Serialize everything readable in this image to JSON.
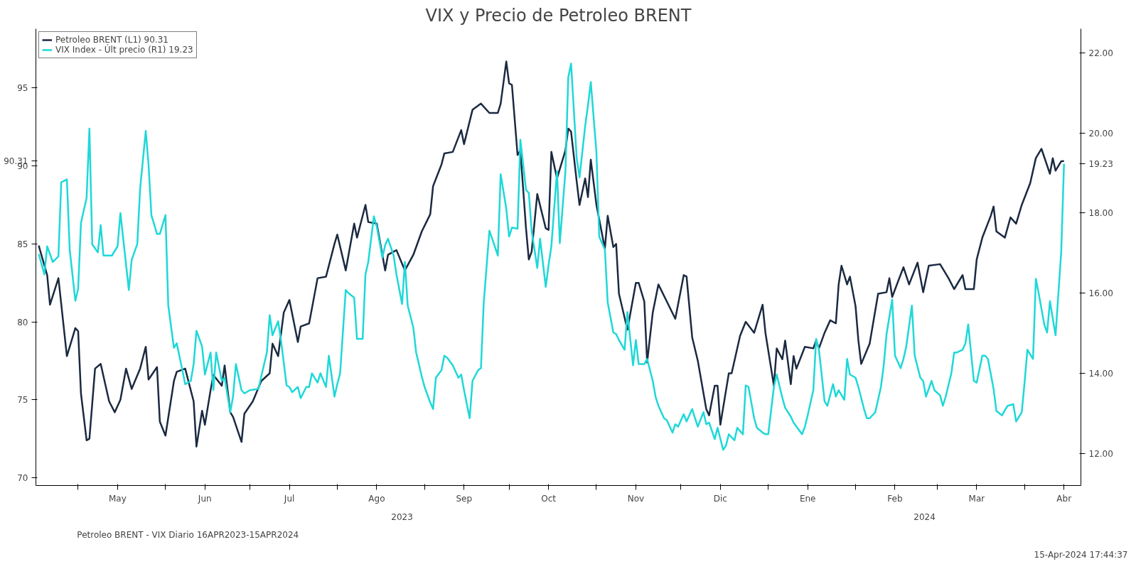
{
  "chart_data": {
    "type": "line",
    "title": "VIX y Precio de Petroleo BRENT",
    "xlim": [
      "2023-04-16",
      "2024-04-21"
    ],
    "xticks": [
      {
        "value": "2023-05-01",
        "label": null
      },
      {
        "value": "2023-05-15",
        "label": "May"
      },
      {
        "value": "2023-06-01",
        "label": null
      },
      {
        "value": "2023-06-15",
        "label": "Jun"
      },
      {
        "value": "2023-07-01",
        "label": null
      },
      {
        "value": "2023-07-15",
        "label": "Jul"
      },
      {
        "value": "2023-08-01",
        "label": null
      },
      {
        "value": "2023-08-15",
        "label": "Ago"
      },
      {
        "value": "2023-09-01",
        "label": null
      },
      {
        "value": "2023-09-15",
        "label": "Sep"
      },
      {
        "value": "2023-10-01",
        "label": null
      },
      {
        "value": "2023-10-15",
        "label": "Oct"
      },
      {
        "value": "2023-11-01",
        "label": null
      },
      {
        "value": "2023-11-15",
        "label": "Nov"
      },
      {
        "value": "2023-12-01",
        "label": null
      },
      {
        "value": "2023-12-15",
        "label": "Dic"
      },
      {
        "value": "2024-01-01",
        "label": null
      },
      {
        "value": "2024-01-15",
        "label": "Ene"
      },
      {
        "value": "2024-02-01",
        "label": null
      },
      {
        "value": "2024-02-15",
        "label": "Feb"
      },
      {
        "value": "2024-03-01",
        "label": null
      },
      {
        "value": "2024-03-15",
        "label": "Mar"
      },
      {
        "value": "2024-04-01",
        "label": null
      },
      {
        "value": "2024-04-15",
        "label": "Abr"
      }
    ],
    "ylim": [
      69.5,
      98.8
    ],
    "yticks": [
      70,
      75,
      80,
      85,
      90,
      {
        "value": 90.31,
        "label": "90.31"
      },
      95
    ],
    "y2lim": [
      11.2,
      22.6
    ],
    "y2ticks": [
      {
        "value": 12,
        "label": "12.00"
      },
      {
        "value": 14,
        "label": "14.00"
      },
      {
        "value": 16,
        "label": "16.00"
      },
      {
        "value": 18,
        "label": "18.00"
      },
      {
        "value": 19.23,
        "label": "19.23"
      },
      {
        "value": 20,
        "label": "20.00"
      },
      {
        "value": 22,
        "label": "22.00"
      }
    ],
    "legend": "top left",
    "series": [
      {
        "name": "Petroleo BRENT (L1) 90.31",
        "color": "#1b2a41",
        "axis": "y",
        "x": [
          "2023-04-17",
          "2023-04-20",
          "2023-04-21",
          "2023-04-24",
          "2023-04-27",
          "2023-04-30",
          "2023-05-01",
          "2023-05-02",
          "2023-05-04",
          "2023-05-05",
          "2023-05-07",
          "2023-05-09",
          "2023-05-12",
          "2023-05-14",
          "2023-05-16",
          "2023-05-18",
          "2023-05-20",
          "2023-05-23",
          "2023-05-25",
          "2023-05-26",
          "2023-05-29",
          "2023-05-30",
          "2023-06-01",
          "2023-06-04",
          "2023-06-05",
          "2023-06-08",
          "2023-06-11",
          "2023-06-12",
          "2023-06-14",
          "2023-06-15",
          "2023-06-17",
          "2023-06-18",
          "2023-06-21",
          "2023-06-22",
          "2023-06-24",
          "2023-06-25",
          "2023-06-28",
          "2023-06-29",
          "2023-07-02",
          "2023-07-05",
          "2023-07-08",
          "2023-07-09",
          "2023-07-11",
          "2023-07-13",
          "2023-07-15",
          "2023-07-18",
          "2023-07-19",
          "2023-07-22",
          "2023-07-25",
          "2023-07-28",
          "2023-07-31",
          "2023-08-01",
          "2023-08-04",
          "2023-08-07",
          "2023-08-08",
          "2023-08-11",
          "2023-08-12",
          "2023-08-15",
          "2023-08-18",
          "2023-08-19",
          "2023-08-22",
          "2023-08-25",
          "2023-08-28",
          "2023-08-31",
          "2023-09-03",
          "2023-09-04",
          "2023-09-07",
          "2023-09-08",
          "2023-09-11",
          "2023-09-14",
          "2023-09-15",
          "2023-09-18",
          "2023-09-21",
          "2023-09-24",
          "2023-09-27",
          "2023-09-28",
          "2023-09-30",
          "2023-10-01",
          "2023-10-02",
          "2023-10-04",
          "2023-10-05",
          "2023-10-07",
          "2023-10-08",
          "2023-10-09",
          "2023-10-11",
          "2023-10-14",
          "2023-10-15",
          "2023-10-16",
          "2023-10-18",
          "2023-10-21",
          "2023-10-22",
          "2023-10-23",
          "2023-10-25",
          "2023-10-26",
          "2023-10-28",
          "2023-10-29",
          "2023-10-30",
          "2023-11-01",
          "2023-11-04",
          "2023-11-05",
          "2023-11-07",
          "2023-11-08",
          "2023-11-09",
          "2023-11-12",
          "2023-11-15",
          "2023-11-16",
          "2023-11-18",
          "2023-11-19",
          "2023-11-21",
          "2023-11-23",
          "2023-11-26",
          "2023-11-29",
          "2023-12-02",
          "2023-12-03",
          "2023-12-05",
          "2023-12-07",
          "2023-12-10",
          "2023-12-11",
          "2023-12-13",
          "2023-12-14",
          "2023-12-15",
          "2023-12-18",
          "2023-12-19",
          "2023-12-22",
          "2023-12-24",
          "2023-12-27",
          "2023-12-30",
          "2023-12-31",
          "2024-01-03",
          "2024-01-04",
          "2024-01-06",
          "2024-01-07",
          "2024-01-09",
          "2024-01-10",
          "2024-01-11",
          "2024-01-14",
          "2024-01-17",
          "2024-01-18",
          "2024-01-19",
          "2024-01-21",
          "2024-01-23",
          "2024-01-25",
          "2024-01-26",
          "2024-01-27",
          "2024-01-29",
          "2024-01-30",
          "2024-02-01",
          "2024-02-02",
          "2024-02-03",
          "2024-02-06",
          "2024-02-09",
          "2024-02-12",
          "2024-02-13",
          "2024-02-14",
          "2024-02-18",
          "2024-02-20",
          "2024-02-23",
          "2024-02-25",
          "2024-02-27",
          "2024-03-02",
          "2024-03-05",
          "2024-03-07",
          "2024-03-10",
          "2024-03-11",
          "2024-03-14",
          "2024-03-15",
          "2024-03-17",
          "2024-03-20",
          "2024-03-21",
          "2024-03-22",
          "2024-03-25",
          "2024-03-27",
          "2024-03-29",
          "2024-03-31",
          "2024-04-03",
          "2024-04-05",
          "2024-04-07",
          "2024-04-10",
          "2024-04-11",
          "2024-04-12",
          "2024-04-14",
          "2024-04-15"
        ],
        "values": [
          84.9,
          83.0,
          81.1,
          82.8,
          77.8,
          79.6,
          79.4,
          75.4,
          72.4,
          72.5,
          77.0,
          77.3,
          74.9,
          74.2,
          75.0,
          77.0,
          75.7,
          77.0,
          78.4,
          76.3,
          77.1,
          73.6,
          72.7,
          76.2,
          76.8,
          77.0,
          74.9,
          72.0,
          74.3,
          73.4,
          75.6,
          76.6,
          75.9,
          77.2,
          74.2,
          73.9,
          72.3,
          74.1,
          74.9,
          76.2,
          76.7,
          78.6,
          77.8,
          80.6,
          81.4,
          78.7,
          79.7,
          79.9,
          82.8,
          82.9,
          85.0,
          85.6,
          83.3,
          86.3,
          85.4,
          87.5,
          86.4,
          86.3,
          83.3,
          84.3,
          84.6,
          83.3,
          84.3,
          85.8,
          86.9,
          88.7,
          90.1,
          90.8,
          90.9,
          92.3,
          91.4,
          93.6,
          94.0,
          93.4,
          93.4,
          94.0,
          96.7,
          95.3,
          95.2,
          90.7,
          91.0,
          86.0,
          84.0,
          84.5,
          88.2,
          86.0,
          85.9,
          90.9,
          89.2,
          91.0,
          92.4,
          92.2,
          89.0,
          87.5,
          89.2,
          88.0,
          90.4,
          87.5,
          84.7,
          86.8,
          84.8,
          85.0,
          81.8,
          79.5,
          82.5,
          82.5,
          81.3,
          77.4,
          80.6,
          82.4,
          81.3,
          80.2,
          83.0,
          82.9,
          79.0,
          77.5,
          74.4,
          74.0,
          75.9,
          75.9,
          73.4,
          76.7,
          76.7,
          79.1,
          80.0,
          79.3,
          81.1,
          79.3,
          75.9,
          78.3,
          77.6,
          78.8,
          76.0,
          77.8,
          77.0,
          78.4,
          78.3,
          78.8,
          78.3,
          79.3,
          80.1,
          79.9,
          82.4,
          83.6,
          82.4,
          82.9,
          81.0,
          78.8,
          77.3,
          78.6,
          81.8,
          81.9,
          82.8,
          81.6,
          83.5,
          82.4,
          83.8,
          81.9,
          83.6,
          83.7,
          82.8,
          82.1,
          83.0,
          82.1,
          82.1,
          84.0,
          85.4,
          86.8,
          87.4,
          85.8,
          85.4,
          86.7,
          86.3,
          87.5,
          88.9,
          90.5,
          91.1,
          89.5,
          90.5,
          89.7,
          90.3,
          90.31
        ]
      },
      {
        "name": "VIX Index - Últ precio (R1) 19.23",
        "color": "#1ed8d8",
        "axis": "y2",
        "x": [
          "2023-04-17",
          "2023-04-19",
          "2023-04-20",
          "2023-04-22",
          "2023-04-24",
          "2023-04-25",
          "2023-04-27",
          "2023-04-28",
          "2023-04-30",
          "2023-05-01",
          "2023-05-02",
          "2023-05-04",
          "2023-05-05",
          "2023-05-06",
          "2023-05-08",
          "2023-05-09",
          "2023-05-10",
          "2023-05-13",
          "2023-05-15",
          "2023-05-16",
          "2023-05-19",
          "2023-05-20",
          "2023-05-22",
          "2023-05-23",
          "2023-05-25",
          "2023-05-26",
          "2023-05-27",
          "2023-05-29",
          "2023-05-30",
          "2023-06-01",
          "2023-06-02",
          "2023-06-04",
          "2023-06-05",
          "2023-06-07",
          "2023-06-08",
          "2023-06-10",
          "2023-06-11",
          "2023-06-12",
          "2023-06-14",
          "2023-06-15",
          "2023-06-17",
          "2023-06-18",
          "2023-06-19",
          "2023-06-21",
          "2023-06-22",
          "2023-06-24",
          "2023-06-25",
          "2023-06-26",
          "2023-06-28",
          "2023-06-29",
          "2023-07-01",
          "2023-07-04",
          "2023-07-05",
          "2023-07-07",
          "2023-07-08",
          "2023-07-09",
          "2023-07-11",
          "2023-07-12",
          "2023-07-14",
          "2023-07-15",
          "2023-07-16",
          "2023-07-18",
          "2023-07-19",
          "2023-07-21",
          "2023-07-22",
          "2023-07-23",
          "2023-07-25",
          "2023-07-26",
          "2023-07-28",
          "2023-07-29",
          "2023-07-31",
          "2023-08-01",
          "2023-08-02",
          "2023-08-04",
          "2023-08-05",
          "2023-08-07",
          "2023-08-08",
          "2023-08-10",
          "2023-08-11",
          "2023-08-12",
          "2023-08-14",
          "2023-08-15",
          "2023-08-17",
          "2023-08-18",
          "2023-08-19",
          "2023-08-21",
          "2023-08-22",
          "2023-08-24",
          "2023-08-25",
          "2023-08-26",
          "2023-08-28",
          "2023-08-29",
          "2023-08-31",
          "2023-09-01",
          "2023-09-03",
          "2023-09-04",
          "2023-09-05",
          "2023-09-07",
          "2023-09-08",
          "2023-09-09",
          "2023-09-11",
          "2023-09-13",
          "2023-09-14",
          "2023-09-15",
          "2023-09-17",
          "2023-09-18",
          "2023-09-20",
          "2023-09-21",
          "2023-09-22",
          "2023-09-24",
          "2023-09-25",
          "2023-09-27",
          "2023-09-28",
          "2023-09-30",
          "2023-10-01",
          "2023-10-02",
          "2023-10-04",
          "2023-10-05",
          "2023-10-07",
          "2023-10-08",
          "2023-10-09",
          "2023-10-11",
          "2023-10-12",
          "2023-10-14",
          "2023-10-15",
          "2023-10-16",
          "2023-10-18",
          "2023-10-19",
          "2023-10-21",
          "2023-10-22",
          "2023-10-23",
          "2023-10-25",
          "2023-10-26",
          "2023-10-28",
          "2023-10-29",
          "2023-10-30",
          "2023-11-01",
          "2023-11-02",
          "2023-11-04",
          "2023-11-05",
          "2023-11-07",
          "2023-11-08",
          "2023-11-09",
          "2023-11-11",
          "2023-11-12",
          "2023-11-14",
          "2023-11-15",
          "2023-11-16",
          "2023-11-18",
          "2023-11-19",
          "2023-11-21",
          "2023-11-22",
          "2023-11-23",
          "2023-11-25",
          "2023-11-26",
          "2023-11-28",
          "2023-11-29",
          "2023-11-30",
          "2023-12-02",
          "2023-12-03",
          "2023-12-05",
          "2023-12-06",
          "2023-12-07",
          "2023-12-09",
          "2023-12-10",
          "2023-12-11",
          "2023-12-13",
          "2023-12-14",
          "2023-12-16",
          "2023-12-17",
          "2023-12-18",
          "2023-12-20",
          "2023-12-21",
          "2023-12-23",
          "2023-12-24",
          "2023-12-25",
          "2023-12-27",
          "2023-12-28",
          "2023-12-30",
          "2023-12-31",
          "2024-01-01",
          "2024-01-03",
          "2024-01-04",
          "2024-01-06",
          "2024-01-07",
          "2024-01-09",
          "2024-01-10",
          "2024-01-11",
          "2024-01-13",
          "2024-01-14",
          "2024-01-15",
          "2024-01-17",
          "2024-01-18",
          "2024-01-19",
          "2024-01-21",
          "2024-01-22",
          "2024-01-24",
          "2024-01-25",
          "2024-01-26",
          "2024-01-28",
          "2024-01-29",
          "2024-01-30",
          "2024-02-01",
          "2024-02-02",
          "2024-02-04",
          "2024-02-05",
          "2024-02-06",
          "2024-02-08",
          "2024-02-10",
          "2024-02-11",
          "2024-02-12",
          "2024-02-14",
          "2024-02-15",
          "2024-02-17",
          "2024-02-18",
          "2024-02-19",
          "2024-02-21",
          "2024-02-22",
          "2024-02-24",
          "2024-02-25",
          "2024-02-26",
          "2024-02-28",
          "2024-02-29",
          "2024-03-02",
          "2024-03-03",
          "2024-03-04",
          "2024-03-06",
          "2024-03-07",
          "2024-03-08",
          "2024-03-10",
          "2024-03-11",
          "2024-03-12",
          "2024-03-14",
          "2024-03-15",
          "2024-03-17",
          "2024-03-18",
          "2024-03-19",
          "2024-03-21",
          "2024-03-22",
          "2024-03-24",
          "2024-03-25",
          "2024-03-26",
          "2024-03-28",
          "2024-03-29",
          "2024-03-31",
          "2024-04-01",
          "2024-04-02",
          "2024-04-04",
          "2024-04-05",
          "2024-04-06",
          "2024-04-08",
          "2024-04-09",
          "2024-04-10",
          "2024-04-12",
          "2024-04-14",
          "2024-04-15"
        ],
        "values": [
          16.98,
          16.47,
          17.17,
          16.78,
          16.92,
          18.77,
          18.84,
          17.09,
          15.81,
          16.11,
          17.75,
          18.38,
          20.11,
          17.22,
          17.02,
          17.7,
          16.94,
          16.94,
          17.17,
          18.0,
          16.08,
          16.83,
          17.23,
          18.61,
          20.05,
          19.2,
          17.95,
          17.48,
          17.48,
          17.95,
          15.69,
          14.64,
          14.75,
          14.08,
          13.73,
          13.81,
          14.23,
          15.06,
          14.67,
          13.97,
          14.52,
          13.58,
          14.52,
          13.81,
          13.89,
          13.03,
          13.42,
          14.23,
          13.58,
          13.5,
          13.58,
          13.61,
          13.92,
          14.52,
          15.45,
          14.95,
          15.3,
          14.83,
          13.7,
          13.66,
          13.53,
          13.66,
          13.38,
          13.66,
          13.66,
          14.0,
          13.77,
          14.0,
          13.66,
          14.44,
          13.42,
          13.73,
          14.0,
          16.08,
          16.0,
          15.89,
          14.86,
          14.86,
          16.47,
          16.78,
          17.92,
          17.67,
          16.89,
          17.2,
          17.36,
          16.94,
          16.47,
          15.73,
          16.78,
          15.69,
          15.14,
          14.52,
          13.92,
          13.66,
          13.27,
          13.11,
          13.89,
          14.08,
          14.44,
          14.39,
          14.2,
          13.89,
          13.97,
          13.58,
          12.88,
          13.81,
          14.08,
          14.13,
          15.77,
          17.56,
          17.36,
          16.94,
          18.97,
          18.11,
          17.41,
          17.64,
          17.61,
          19.83,
          18.58,
          18.5,
          17.56,
          16.63,
          17.36,
          16.16,
          16.7,
          17.17,
          19.05,
          17.25,
          19.05,
          21.39,
          21.73,
          19.36,
          18.89,
          20.17,
          20.69,
          21.27,
          19.52,
          17.41,
          17.09,
          15.77,
          15.02,
          14.98,
          14.83,
          14.59,
          15.53,
          14.2,
          14.83,
          14.23,
          14.23,
          14.36,
          13.81,
          13.42,
          13.19,
          12.88,
          12.83,
          12.52,
          12.73,
          12.67,
          12.98,
          12.8,
          13.11,
          12.88,
          12.67,
          13.03,
          12.73,
          12.77,
          12.36,
          12.64,
          12.09,
          12.2,
          12.48,
          12.33,
          12.64,
          12.48,
          13.7,
          13.66,
          12.88,
          12.64,
          12.52,
          12.48,
          12.48,
          13.66,
          13.97,
          13.39,
          13.14,
          12.92,
          12.77,
          12.67,
          12.48,
          12.67,
          12.95,
          13.58,
          14.86,
          14.59,
          13.3,
          13.19,
          13.73,
          13.42,
          13.58,
          13.34,
          14.36,
          13.97,
          13.89,
          13.66,
          13.11,
          12.88,
          12.88,
          13.03,
          13.66,
          14.2,
          14.98,
          15.84,
          14.44,
          14.13,
          14.36,
          14.67,
          15.69,
          14.44,
          13.89,
          13.81,
          13.42,
          13.81,
          13.58,
          13.45,
          13.19,
          13.42,
          14.0,
          14.52,
          14.52,
          14.59,
          14.75,
          15.22,
          13.81,
          13.77,
          14.44,
          14.44,
          14.36,
          13.61,
          13.06,
          12.95,
          13.08,
          13.19,
          13.23,
          12.8,
          13.03,
          13.77,
          14.59,
          14.36,
          16.36,
          16.0,
          15.22,
          15.02,
          15.8,
          14.95,
          17.02,
          19.23
        ]
      }
    ],
    "annotations": [
      "2023",
      "2024",
      "Petroleo BRENT - VIX  Diario 16APR2023-15APR2024",
      "15-Apr-2024 17:44:37"
    ]
  }
}
